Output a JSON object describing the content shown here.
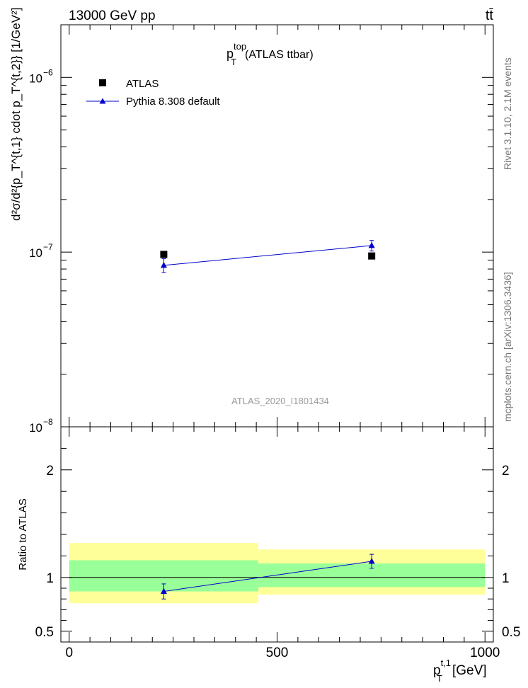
{
  "header": {
    "energy_label": "13000 GeV pp",
    "process_label": "tt̄"
  },
  "side_labels": {
    "rivet": "Rivet 3.1.10,  2.1M events",
    "mcplots": "mcplots.cern.ch [arXiv:1306.3436]"
  },
  "watermark": "ATLAS_2020_I1801434",
  "chart_data": [
    {
      "type": "scatter",
      "title_main": "p",
      "title_sup": "top",
      "title_sub": "T",
      "title_suffix": "(ATLAS ttbar)",
      "ylabel": "d²σ/d²{p_T^{t,1} cdot p_T^{t,2}} [1/GeV²]",
      "yscale": "log",
      "ylim": [
        1e-08,
        2e-06
      ],
      "xlim": [
        -20,
        1020
      ],
      "y_tick_labels": [
        {
          "value": 1e-08,
          "base": "10",
          "exp": "−8"
        },
        {
          "value": 1e-07,
          "base": "10",
          "exp": "−7"
        },
        {
          "value": 1e-06,
          "base": "10",
          "exp": "−6"
        }
      ],
      "legend_position": "top-left",
      "series": [
        {
          "name": "ATLAS",
          "marker": "square",
          "color": "#000000",
          "x": [
            227.5,
            727.5
          ],
          "y": [
            9.7e-08,
            9.5e-08
          ]
        },
        {
          "name": "Pythia 8.308 default",
          "marker": "triangle",
          "color": "#0000cc",
          "x": [
            227.5,
            727.5
          ],
          "y": [
            8.4e-08,
            1.09e-07
          ],
          "yerr_low": [
            7.6e-09,
            7.6e-09
          ],
          "yerr_high": [
            7.6e-09,
            7.6e-09
          ]
        }
      ]
    },
    {
      "type": "line",
      "ylabel": "Ratio to ATLAS",
      "xlabel_main": "p",
      "xlabel_sup": "t,1",
      "xlabel_sub": "T",
      "xlabel_unit": "[GeV]",
      "ylim": [
        0.4,
        2.4
      ],
      "xlim": [
        -20,
        1020
      ],
      "y_tick_labels": [
        "0.5",
        "1",
        "2"
      ],
      "y_tick_values": [
        0.5,
        1,
        2
      ],
      "x_tick_labels": [
        "0",
        "500",
        "1000"
      ],
      "x_tick_values": [
        0,
        500,
        1000
      ],
      "bands": [
        {
          "x": [
            0,
            455
          ],
          "yellow": [
            0.76,
            1.32
          ],
          "green": [
            0.87,
            1.16
          ]
        },
        {
          "x": [
            455,
            1000
          ],
          "yellow": [
            0.84,
            1.26
          ],
          "green": [
            0.91,
            1.13
          ]
        }
      ],
      "band_colors": {
        "yellow": "#ffff99",
        "green": "#99ff99"
      },
      "reference_line": 1,
      "series": [
        {
          "name": "Pythia 8.308 default",
          "color": "#0000cc",
          "x": [
            227.5,
            727.5
          ],
          "y": [
            0.87,
            1.15
          ],
          "yerr_low": [
            0.07,
            0.065
          ],
          "yerr_high": [
            0.07,
            0.065
          ]
        }
      ]
    }
  ]
}
